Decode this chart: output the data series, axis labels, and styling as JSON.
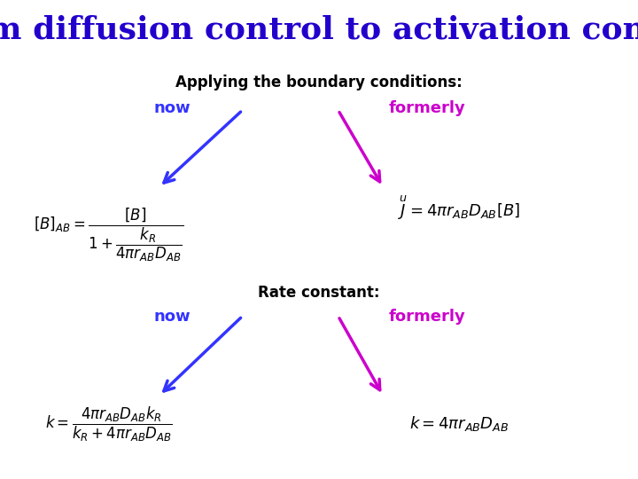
{
  "title": "From diffusion control to activation control",
  "title_color": "#2200CC",
  "title_fontsize": 26,
  "bg_color": "#FFFFFF",
  "subtitle1": "Applying the boundary conditions:",
  "subtitle2": "Rate constant:",
  "subtitle_color": "#000000",
  "subtitle_fontsize": 12,
  "now_color": "#3333FF",
  "formerly_color": "#CC00CC",
  "label_fontsize": 13,
  "eq1_left": "$[B]_{AB} = \\dfrac{[B]}{1+\\dfrac{k_R}{4\\pi r_{AB}D_{AB}}}$",
  "eq1_right": "$\\overset{u}{J} = 4\\pi r_{AB}D_{AB}[B]$",
  "eq2_left": "$k = \\dfrac{4\\pi r_{AB}D_{AB}k_R}{k_R + 4\\pi r_{AB}D_{AB}}$",
  "eq2_right": "$k = 4\\pi r_{AB}D_{AB}$",
  "arrow_now_color": "#3333FF",
  "arrow_formerly_color": "#CC00CC"
}
